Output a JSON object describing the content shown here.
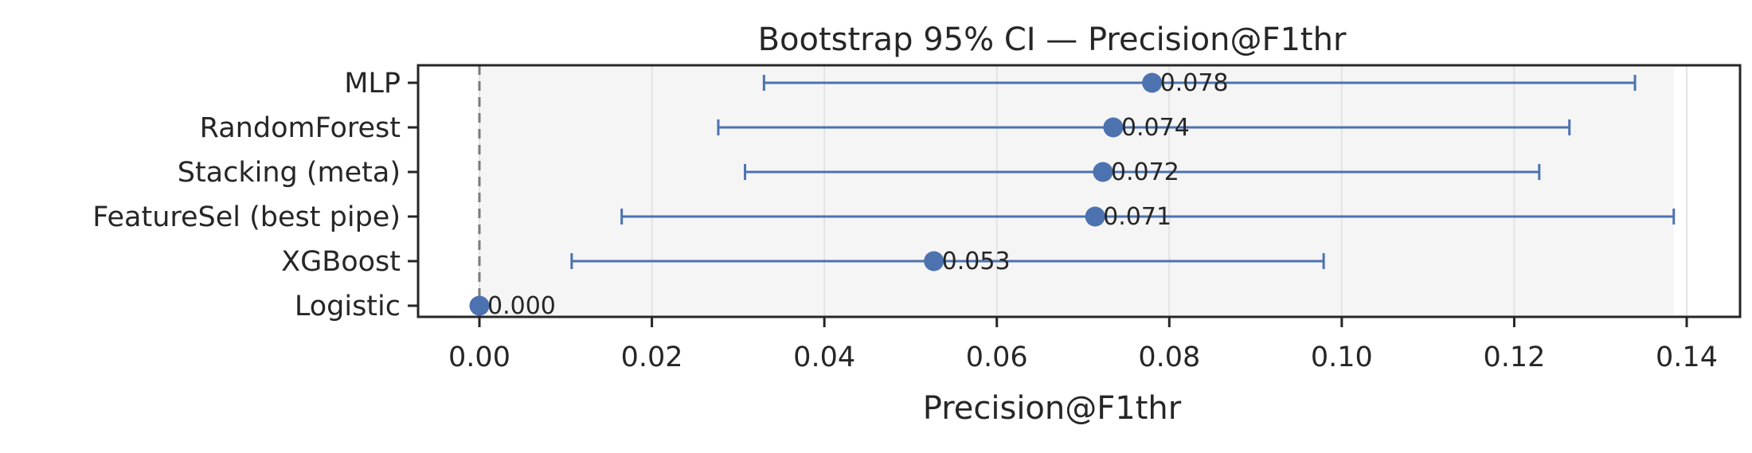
{
  "chart_data": {
    "type": "scatter",
    "title": "Bootstrap 95% CI — Precision@F1thr",
    "xlabel": "Precision@F1thr",
    "ylabel": "",
    "xlim": [
      -0.007,
      0.145
    ],
    "xticks": [
      0.0,
      0.02,
      0.04,
      0.06,
      0.08,
      0.1,
      0.12,
      0.14
    ],
    "xtick_labels": [
      "0.00",
      "0.02",
      "0.04",
      "0.06",
      "0.08",
      "0.10",
      "0.12",
      "0.14"
    ],
    "grid": "x",
    "reference_line": 0.0,
    "shaded_range": [
      0.0,
      0.1385
    ],
    "colors": {
      "point": "#4c72b0",
      "errorbar": "#4c72b0",
      "refline": "#7a7a7a",
      "shade": "#f5f5f5"
    },
    "categories": [
      "MLP",
      "RandomForest",
      "Stacking (meta)",
      "FeatureSel (best pipe)",
      "XGBoost",
      "Logistic"
    ],
    "values": [
      0.078,
      0.0735,
      0.0723,
      0.0714,
      0.0527,
      0.0
    ],
    "ci_low": [
      0.033,
      0.0277,
      0.0308,
      0.0165,
      0.0107,
      0.0
    ],
    "ci_high": [
      0.134,
      0.1264,
      0.1229,
      0.1385,
      0.0979,
      0.0
    ],
    "value_labels": [
      "0.078",
      "0.074",
      "0.072",
      "0.071",
      "0.053",
      "0.000"
    ]
  }
}
